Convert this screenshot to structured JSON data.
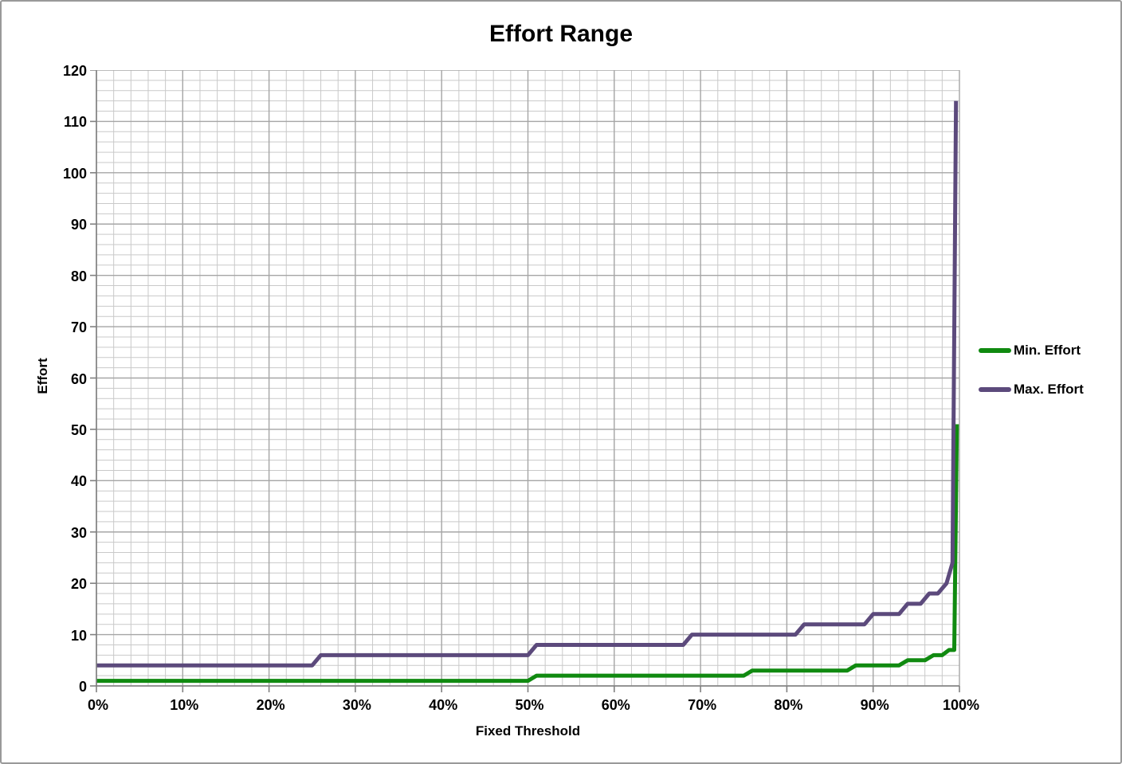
{
  "title": "Effort Range",
  "colors": {
    "min_effort_line": "#108a10",
    "max_effort_line": "#5c4a7c",
    "grid_minor": "#c9c9c9",
    "grid_major": "#a6a6a6",
    "axis": "#808080",
    "frame_border": "#999999",
    "background": "#ffffff",
    "text": "#000000"
  },
  "chart_data": {
    "type": "line",
    "title": "Effort Range",
    "xlabel": "Fixed Threshold",
    "ylabel": "Effort",
    "xlim": [
      0,
      100
    ],
    "ylim": [
      0,
      120
    ],
    "x_tick_labels": [
      "0%",
      "10%",
      "20%",
      "30%",
      "40%",
      "50%",
      "60%",
      "70%",
      "80%",
      "90%",
      "100%"
    ],
    "y_tick_labels": [
      "0",
      "10",
      "20",
      "30",
      "40",
      "50",
      "60",
      "70",
      "80",
      "90",
      "100",
      "110",
      "120"
    ],
    "x_minor_divisions": 50,
    "y_minor_divisions": 60,
    "grid": "major+minor",
    "legend_position": "right",
    "series": [
      {
        "name": "Min. Effort",
        "color": "#108a10",
        "points": [
          [
            0,
            1
          ],
          [
            50,
            1
          ],
          [
            51,
            2
          ],
          [
            75,
            2
          ],
          [
            76,
            3
          ],
          [
            87,
            3
          ],
          [
            88,
            4
          ],
          [
            93,
            4
          ],
          [
            94,
            5
          ],
          [
            96,
            5
          ],
          [
            97,
            6
          ],
          [
            98,
            6
          ],
          [
            98.8,
            7
          ],
          [
            99.4,
            7
          ],
          [
            99.7,
            51
          ]
        ]
      },
      {
        "name": "Max. Effort",
        "color": "#5c4a7c",
        "points": [
          [
            0,
            4
          ],
          [
            25,
            4
          ],
          [
            26,
            6
          ],
          [
            50,
            6
          ],
          [
            51,
            8
          ],
          [
            68,
            8
          ],
          [
            69,
            10
          ],
          [
            81,
            10
          ],
          [
            82,
            12
          ],
          [
            89,
            12
          ],
          [
            90,
            14
          ],
          [
            93,
            14
          ],
          [
            94,
            16
          ],
          [
            95.5,
            16
          ],
          [
            96.5,
            18
          ],
          [
            97.5,
            18
          ],
          [
            98.5,
            20
          ],
          [
            99.2,
            24
          ],
          [
            99.6,
            114
          ]
        ]
      }
    ]
  }
}
